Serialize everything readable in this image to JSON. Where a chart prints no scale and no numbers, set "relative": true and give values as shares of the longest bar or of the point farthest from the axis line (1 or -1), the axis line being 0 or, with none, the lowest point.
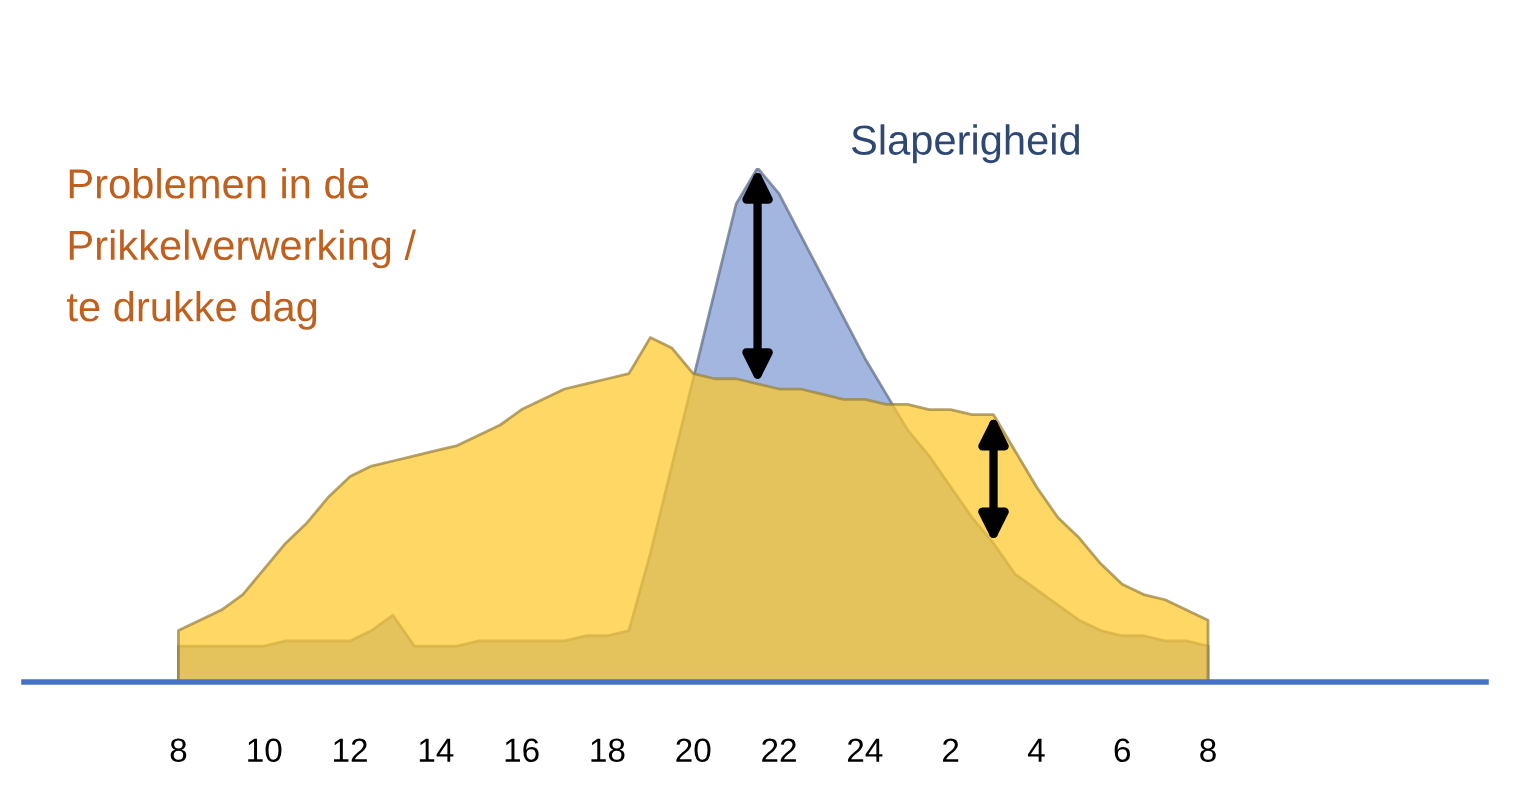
{
  "chart_data": {
    "type": "area",
    "relative": true,
    "grid": false,
    "categories": [
      "8",
      null,
      null,
      null,
      "10",
      null,
      null,
      null,
      "12",
      null,
      null,
      null,
      "14",
      null,
      null,
      null,
      "16",
      null,
      null,
      null,
      "18",
      null,
      null,
      null,
      "20",
      null,
      null,
      null,
      "22",
      null,
      null,
      null,
      "24",
      null,
      null,
      null,
      "2",
      null,
      null,
      null,
      "4",
      null,
      null,
      null,
      "6",
      null,
      null,
      null,
      "8"
    ],
    "series": [
      {
        "name": "Slaperigheid",
        "color": "#a2b6e0",
        "values": [
          0.07,
          0.07,
          0.07,
          0.07,
          0.07,
          0.08,
          0.08,
          0.08,
          0.08,
          0.1,
          0.13,
          0.07,
          0.07,
          0.07,
          0.08,
          0.08,
          0.08,
          0.08,
          0.08,
          0.09,
          0.09,
          0.1,
          0.25,
          0.42,
          0.59,
          0.76,
          0.93,
          1,
          0.95,
          0.87,
          0.79,
          0.71,
          0.63,
          0.56,
          0.49,
          0.44,
          0.38,
          0.32,
          0.27,
          0.21,
          0.18,
          0.15,
          0.12,
          0.1,
          0.09,
          0.09,
          0.08,
          0.08,
          0.07
        ]
      },
      {
        "name": "Problemen in de\nPrikkelverwerking /\nte drukke dag",
        "color": "#ffd764",
        "values": [
          0.1,
          0.12,
          0.14,
          0.17,
          0.22,
          0.27,
          0.31,
          0.36,
          0.4,
          0.42,
          0.43,
          0.44,
          0.45,
          0.46,
          0.48,
          0.5,
          0.53,
          0.55,
          0.57,
          0.58,
          0.59,
          0.6,
          0.67,
          0.65,
          0.6,
          0.59,
          0.59,
          0.58,
          0.57,
          0.57,
          0.56,
          0.55,
          0.55,
          0.54,
          0.54,
          0.53,
          0.53,
          0.52,
          0.52,
          0.45,
          0.38,
          0.32,
          0.28,
          0.23,
          0.19,
          0.17,
          0.16,
          0.14,
          0.12
        ]
      }
    ]
  }
}
